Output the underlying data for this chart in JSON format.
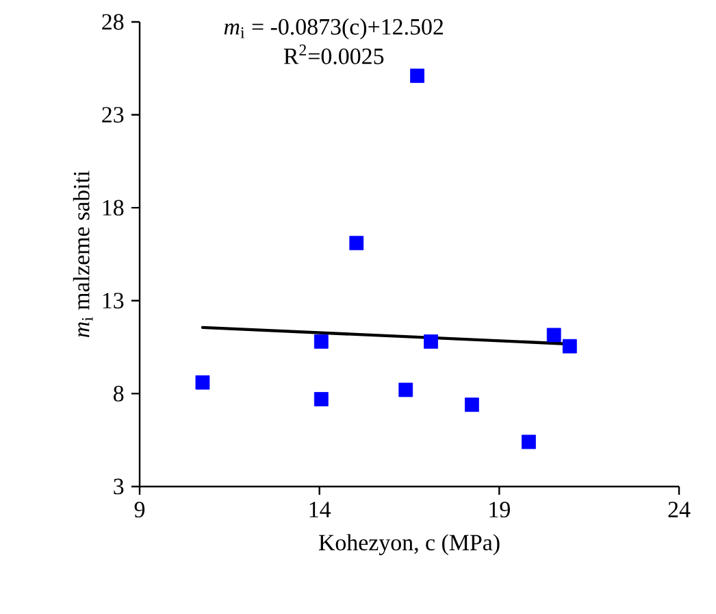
{
  "chart_data": {
    "type": "scatter",
    "xlabel": "Kohezyon, c (MPa)",
    "ylabel": "*m*$_{i}$ malzeme sabiti",
    "annotations": [
      "*m*$_{i}$ = -0.0873(c)+12.502",
      "R$^{2}$=0.0025"
    ],
    "xlim": [
      9,
      24
    ],
    "xticks": [
      9,
      14,
      19,
      24
    ],
    "ylim": [
      3,
      28
    ],
    "yticks": [
      3,
      8,
      13,
      18,
      23,
      28
    ],
    "marker": "square",
    "series": [
      {
        "color": "#0000ff",
        "x": [
          10.75,
          14.05,
          14.05,
          15.03,
          16.72,
          16.4,
          17.1,
          18.24,
          19.82,
          20.52,
          20.96
        ],
        "values": [
          8.6,
          10.8,
          7.7,
          16.1,
          25.1,
          8.2,
          10.8,
          7.4,
          5.4,
          11.15,
          10.55
        ]
      },
      {
        "type": "line",
        "color": "#000000",
        "marker": "none",
        "line_style": "solid",
        "x": [
          10.75,
          20.96
        ],
        "values": [
          11.56,
          10.67
        ]
      }
    ]
  }
}
